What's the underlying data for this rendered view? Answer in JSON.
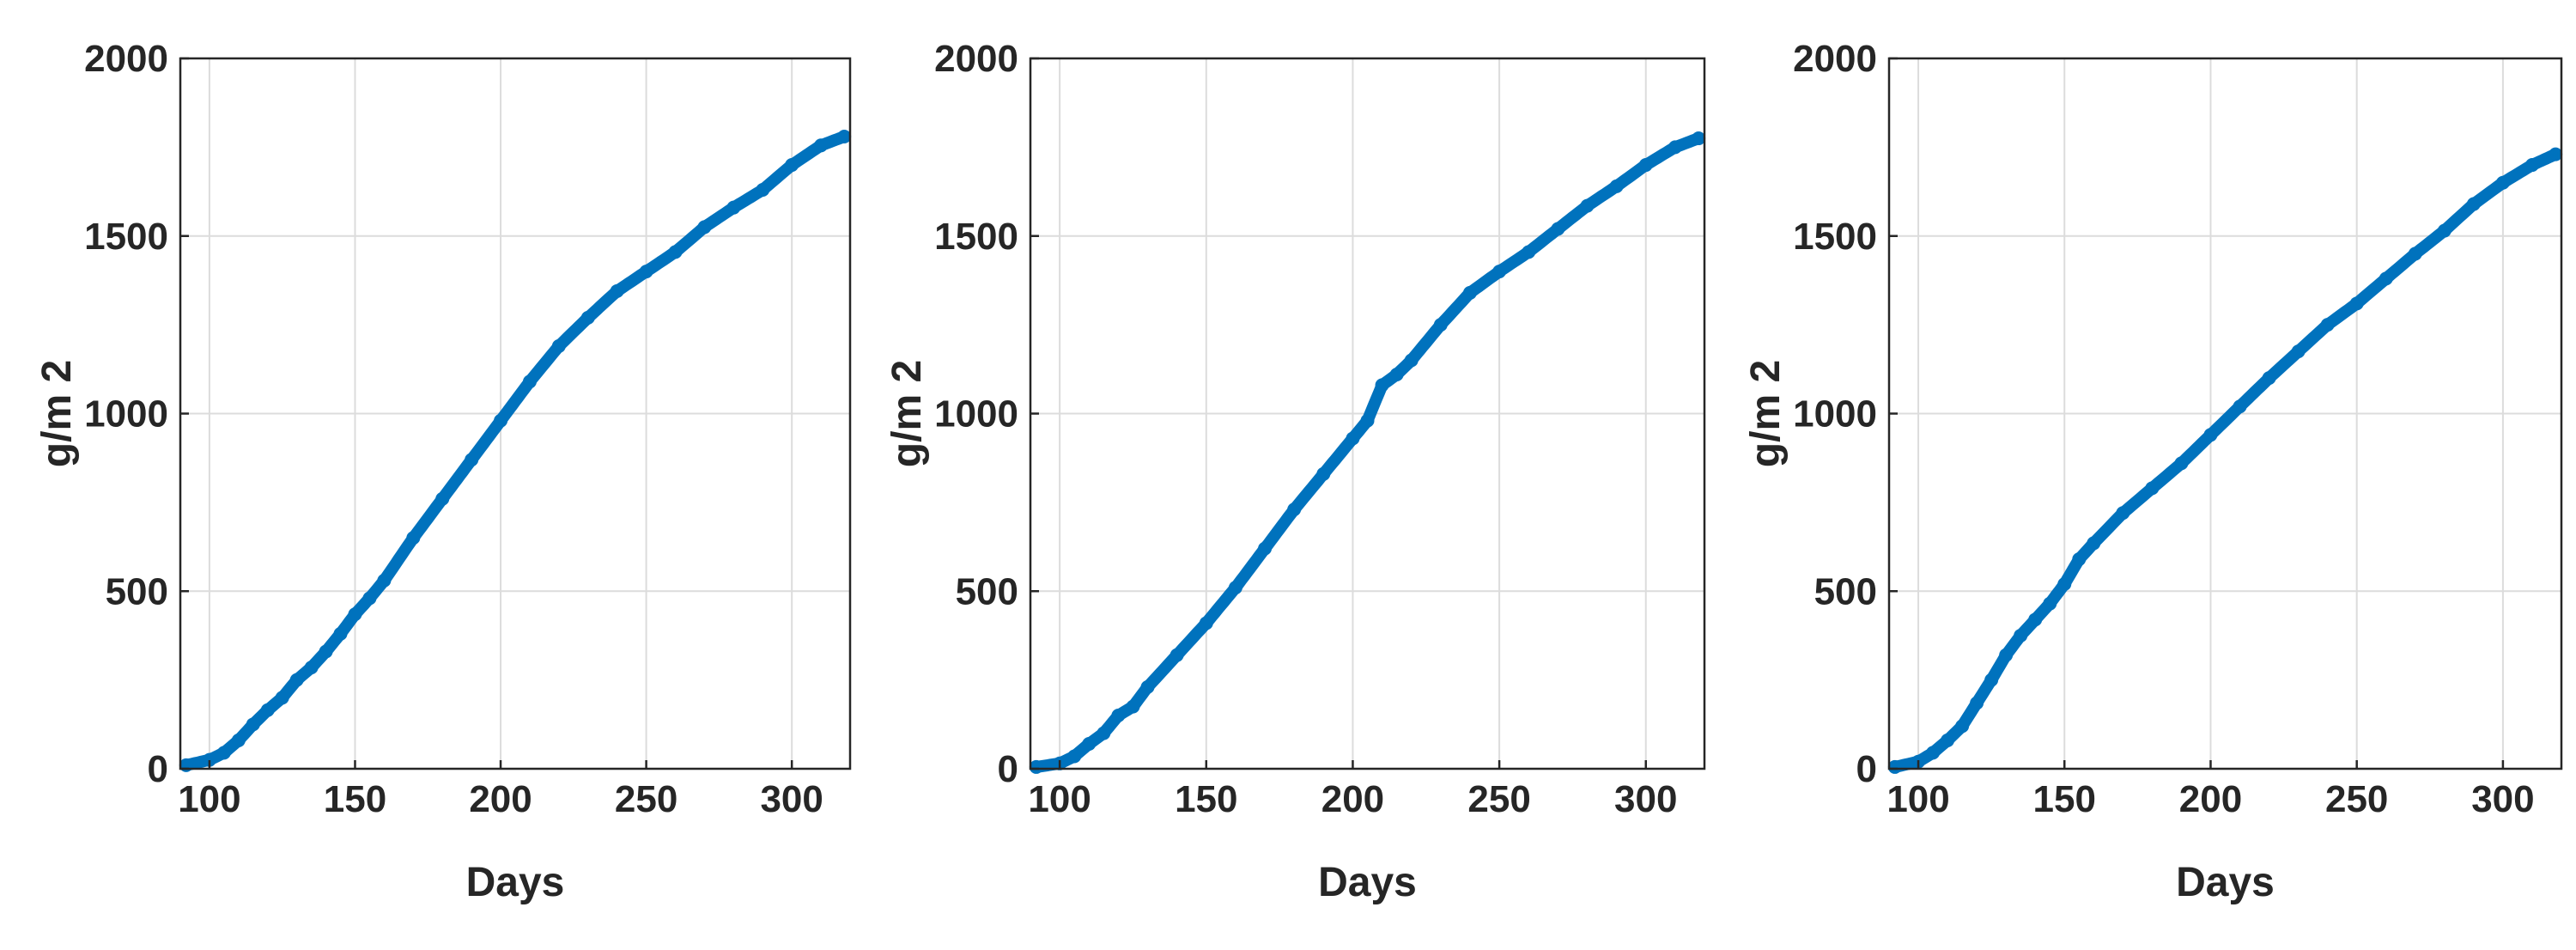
{
  "chart_data": [
    {
      "type": "scatter",
      "xlabel": "Days",
      "ylabel": "g/m 2",
      "xlim": [
        90,
        320
      ],
      "ylim": [
        0,
        2000
      ],
      "xticks": [
        "100",
        "150",
        "200",
        "250",
        "300"
      ],
      "yticks": [
        "0",
        "500",
        "1000",
        "1500",
        "2000"
      ],
      "grid": true,
      "color": "#0072BD",
      "series": [
        {
          "x": [
            92,
            100,
            105,
            110,
            115,
            120,
            125,
            130,
            135,
            140,
            145,
            150,
            155,
            160,
            170,
            180,
            190,
            200,
            210,
            220,
            230,
            240,
            250,
            260,
            270,
            280,
            290,
            300,
            310,
            318
          ],
          "y": [
            10,
            25,
            45,
            80,
            125,
            165,
            200,
            250,
            285,
            330,
            380,
            435,
            480,
            530,
            650,
            760,
            870,
            980,
            1090,
            1190,
            1270,
            1345,
            1400,
            1455,
            1525,
            1580,
            1630,
            1700,
            1755,
            1780
          ]
        }
      ]
    },
    {
      "type": "scatter",
      "xlabel": "Days",
      "ylabel": "g/m 2",
      "xlim": [
        90,
        320
      ],
      "ylim": [
        0,
        2000
      ],
      "xticks": [
        "100",
        "150",
        "200",
        "250",
        "300"
      ],
      "yticks": [
        "0",
        "500",
        "1000",
        "1500",
        "2000"
      ],
      "grid": true,
      "color": "#0072BD",
      "series": [
        {
          "x": [
            92,
            100,
            105,
            110,
            115,
            120,
            125,
            130,
            140,
            150,
            160,
            170,
            180,
            190,
            200,
            205,
            210,
            215,
            220,
            230,
            240,
            250,
            260,
            270,
            280,
            290,
            300,
            310,
            318
          ],
          "y": [
            5,
            15,
            35,
            70,
            100,
            150,
            175,
            230,
            320,
            410,
            510,
            620,
            730,
            830,
            930,
            980,
            1080,
            1110,
            1150,
            1250,
            1340,
            1400,
            1455,
            1520,
            1585,
            1640,
            1700,
            1750,
            1775
          ]
        }
      ]
    },
    {
      "type": "scatter",
      "xlabel": "Days",
      "ylabel": "g/m 2",
      "xlim": [
        90,
        320
      ],
      "ylim": [
        0,
        2000
      ],
      "xticks": [
        "100",
        "150",
        "200",
        "250",
        "300"
      ],
      "yticks": [
        "0",
        "500",
        "1000",
        "1500",
        "2000"
      ],
      "grid": true,
      "color": "#0072BD",
      "series": [
        {
          "x": [
            92,
            100,
            105,
            110,
            115,
            120,
            125,
            130,
            135,
            140,
            145,
            150,
            155,
            160,
            170,
            180,
            190,
            200,
            210,
            220,
            230,
            240,
            250,
            260,
            270,
            280,
            290,
            300,
            310,
            318
          ],
          "y": [
            5,
            20,
            45,
            80,
            120,
            185,
            250,
            320,
            375,
            420,
            465,
            520,
            590,
            635,
            720,
            790,
            860,
            940,
            1020,
            1100,
            1175,
            1250,
            1310,
            1380,
            1450,
            1515,
            1590,
            1650,
            1700,
            1730
          ]
        }
      ]
    }
  ]
}
